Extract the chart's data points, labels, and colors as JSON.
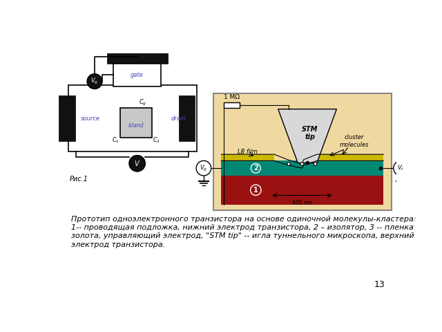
{
  "bg_color": "#ffffff",
  "caption_line1": "Прототип одноэлектронного транзистора на основе одиночной молекулы-кластера:",
  "caption_line2": "1-- проводящая подложка, нижний электрод транзистора, 2 – изолятор, 3 -- пленка",
  "caption_line3": "золота, управляющий электрод, \"STM tip\" -- игла туннельного микроскопа, верхний",
  "caption_line4": "электрод транзистора.",
  "page_number": "13",
  "ris_label": "Рис.1",
  "fig_bg": "#f0d9a0",
  "substrate_color": "#991111",
  "insulator_color": "#008875",
  "gold_color": "#ccb800",
  "dark_gold_color": "#aa9500",
  "stm_color": "#d8d8d8",
  "blue_label": "#4444bb",
  "text_color": "#000000",
  "schematic_lw": 1.2,
  "electrode_color": "#111111"
}
